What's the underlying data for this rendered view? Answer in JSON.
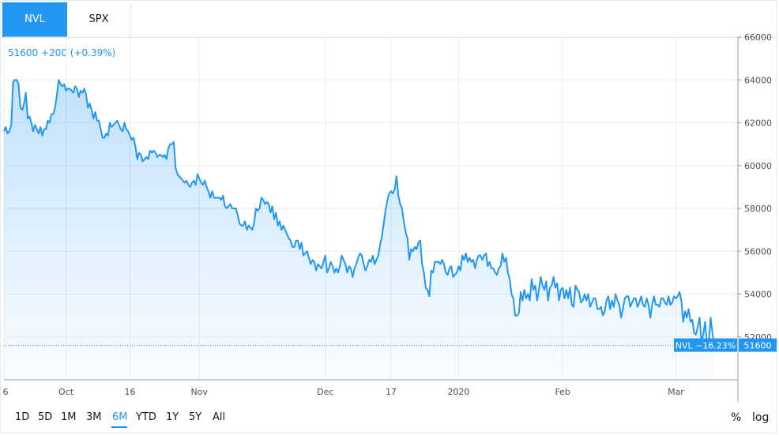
{
  "tabs": [
    {
      "label": "NVL",
      "active": true
    },
    {
      "label": "SPX",
      "active": false
    }
  ],
  "header_value": "51600 +200 (+0.39%)",
  "ranges": [
    "1D",
    "5D",
    "1M",
    "3M",
    "6M",
    "YTD",
    "1Y",
    "5Y",
    "All"
  ],
  "active_range": "6M",
  "right_buttons": {
    "percent": "%",
    "log": "log"
  },
  "colors": {
    "line": "#2196f3",
    "accent": "#2196f3",
    "grid": "#e9ecf1",
    "label_bg": "#2196f3"
  },
  "chart_data": {
    "type": "area",
    "series": [
      {
        "name": "NVL",
        "values": [
          61600,
          61800,
          61500,
          61600,
          61900,
          63900,
          64000,
          64000,
          63800,
          62700,
          62600,
          62900,
          63400,
          62200,
          62300,
          62000,
          61600,
          61900,
          61700,
          61500,
          61800,
          61400,
          61700,
          61700,
          62100,
          62000,
          62400,
          62400,
          62700,
          63300,
          64000,
          63800,
          63700,
          63800,
          63500,
          63600,
          63600,
          63500,
          63400,
          63700,
          63600,
          63200,
          63500,
          63400,
          63600,
          63300,
          62700,
          62900,
          62600,
          62200,
          62500,
          62100,
          62100,
          61700,
          61300,
          61300,
          61500,
          61400,
          62000,
          61800,
          61900,
          62000,
          62100,
          61900,
          61700,
          61600,
          62000,
          61700,
          61600,
          61400,
          61200,
          61300,
          60900,
          60300,
          60600,
          60500,
          60200,
          60300,
          60400,
          60300,
          60700,
          60600,
          60700,
          60600,
          60400,
          60500,
          60500,
          60400,
          60500,
          60300,
          60800,
          61000,
          61000,
          61100,
          59900,
          59600,
          59500,
          59400,
          59300,
          59200,
          59300,
          59100,
          59000,
          59200,
          59300,
          59100,
          59600,
          59400,
          59200,
          59100,
          59300,
          59000,
          58800,
          58500,
          58800,
          58500,
          58500,
          58500,
          58500,
          58400,
          58600,
          58100,
          58000,
          58100,
          58200,
          58000,
          58000,
          58000,
          57700,
          57300,
          57200,
          57200,
          57400,
          57000,
          57200,
          57100,
          57000,
          57300,
          58000,
          57900,
          58000,
          58500,
          58400,
          58200,
          58300,
          58200,
          57800,
          58100,
          57500,
          57800,
          57200,
          57400,
          57000,
          57200,
          57000,
          56800,
          56600,
          56500,
          56200,
          56200,
          56500,
          56500,
          56100,
          56400,
          55800,
          55900,
          56000,
          55700,
          55400,
          55600,
          55500,
          55100,
          55400,
          55300,
          55200,
          55500,
          55800,
          55000,
          55200,
          55500,
          55300,
          55000,
          55200,
          55000,
          55300,
          55800,
          55600,
          55400,
          55000,
          55300,
          55200,
          54800,
          55200,
          55400,
          55700,
          55900,
          55800,
          55400,
          55100,
          55300,
          55600,
          55500,
          55800,
          55400,
          55600,
          55800,
          56300,
          56700,
          57300,
          57900,
          58400,
          58700,
          58800,
          58700,
          58900,
          59500,
          58600,
          58200,
          58000,
          57400,
          56900,
          56600,
          55600,
          56100,
          56000,
          56200,
          56100,
          56400,
          56500,
          55400,
          55000,
          54300,
          54200,
          53900,
          55100,
          55000,
          55500,
          55500,
          55500,
          55400,
          55600,
          55400,
          55000,
          54900,
          55200,
          55300,
          54800,
          54900,
          55000,
          55300,
          55100,
          55800,
          55600,
          55900,
          55500,
          55700,
          55500,
          55600,
          55200,
          55600,
          55800,
          55800,
          55600,
          55800,
          55900,
          55300,
          55500,
          55200,
          55200,
          55000,
          54900,
          55200,
          55300,
          55900,
          55500,
          55700,
          55000,
          54700,
          54000,
          53800,
          53000,
          53000,
          53100,
          54100,
          53700,
          54200,
          53800,
          54000,
          53700,
          54700,
          54200,
          54400,
          53700,
          54200,
          54800,
          54400,
          54200,
          54600,
          53700,
          54300,
          54400,
          54800,
          54300,
          54500,
          53700,
          54200,
          54300,
          53800,
          54200,
          53800,
          54300,
          53500,
          53400,
          54400,
          54200,
          54100,
          53600,
          53700,
          54000,
          53700,
          54000,
          53400,
          53600,
          53800,
          53800,
          53300,
          53300,
          53400,
          53000,
          53200,
          53700,
          53900,
          53300,
          53700,
          53400,
          54000,
          53700,
          53500,
          52900,
          53300,
          53800,
          53900,
          53900,
          53400,
          53600,
          53800,
          53800,
          53400,
          53600,
          53900,
          53500,
          53400,
          53800,
          53500,
          52900,
          53500,
          53900,
          53500,
          53500,
          53400,
          53800,
          53800,
          53600,
          53500,
          53900,
          53500,
          53600,
          53900,
          53800,
          53900,
          54100,
          53700,
          52700,
          53200,
          52900,
          53300,
          52700,
          52800,
          52200,
          52100,
          52500,
          52900,
          51800,
          52100,
          52700,
          51700,
          51700,
          52900,
          52200,
          51600
        ]
      }
    ],
    "last_value": 51600,
    "last_label": "NVL −16.23%",
    "last_value_label": "51600",
    "ylim": [
      50000,
      66000
    ],
    "y_ticks": [
      52000,
      54000,
      56000,
      58000,
      60000,
      62000,
      64000,
      66000
    ],
    "y_tick_labels": [
      "52000",
      "54000",
      "56000",
      "58000",
      "60000",
      "62000",
      "64000",
      "66000"
    ],
    "x_ticks": [
      {
        "label": "6",
        "index": 0
      },
      {
        "label": "Oct",
        "index": 34
      },
      {
        "label": "16",
        "index": 69
      },
      {
        "label": "Nov",
        "index": 107
      },
      {
        "label": "Dec",
        "index": 176
      },
      {
        "label": "17",
        "index": 212
      },
      {
        "label": "2020",
        "index": 249
      },
      {
        "label": "Feb",
        "index": 306
      },
      {
        "label": "Mar",
        "index": 368
      }
    ],
    "grid": true,
    "xlabel": "",
    "ylabel": ""
  }
}
